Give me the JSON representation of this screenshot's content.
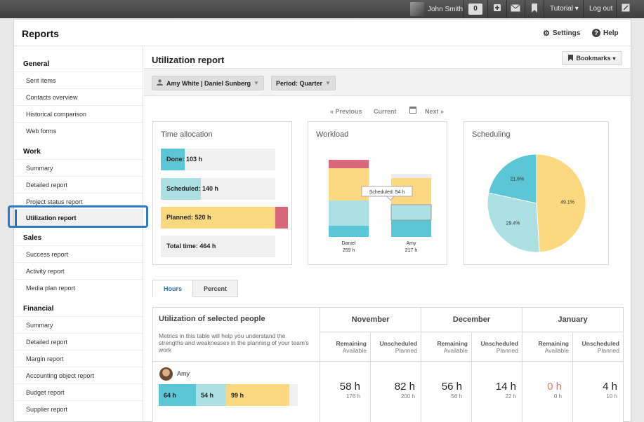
{
  "topbar": {
    "user_name": "John Smith",
    "notifications": "0",
    "tutorial": "Tutorial",
    "logout": "Log out"
  },
  "header": {
    "title": "Reports",
    "settings": "Settings",
    "help": "Help"
  },
  "sidebar": {
    "sections": [
      {
        "title": "General",
        "items": [
          "Sent items",
          "Contacts overview",
          "Historical comparison",
          "Web forms"
        ]
      },
      {
        "title": "Work",
        "items": [
          "Summary",
          "Detailed report",
          "Project status report",
          "Utilization report"
        ]
      },
      {
        "title": "Sales",
        "items": [
          "Success report",
          "Activity report",
          "Media plan report"
        ]
      },
      {
        "title": "Financial",
        "items": [
          "Summary",
          "Detailed report",
          "Margin report",
          "Accounting object report",
          "Budget report",
          "Supplier report"
        ]
      }
    ],
    "active": "Utilization report"
  },
  "main": {
    "title": "Utilization report",
    "bookmarks": "Bookmarks",
    "filters": {
      "people": "Amy White | Daniel Sunberg",
      "period": "Period: Quarter"
    },
    "pager": {
      "previous": "« Previous",
      "current": "Current",
      "next": "Next »"
    }
  },
  "time_allocation": {
    "title": "Time allocation",
    "done": "Done: 103 h",
    "scheduled": "Scheduled: 140 h",
    "planned": "Planned: 520 h",
    "total": "Total time: 464 h",
    "fractions": {
      "done": 0.21,
      "scheduled": 0.35,
      "planned": 1.0,
      "total": 1.0
    },
    "colors": {
      "done": "#5bc6d6",
      "scheduled": "#ade0e2",
      "planned": "#fcd880",
      "over": "#d9687a",
      "bg": "#f0f0f0"
    }
  },
  "workload": {
    "title": "Workload",
    "tooltip": "Scheduled: 54 h",
    "people": [
      {
        "name": "Daniel",
        "total": "259 h",
        "segments": {
          "over": 12,
          "planned": 46,
          "scheduled": 36,
          "done": 16
        }
      },
      {
        "name": "Amy",
        "total": "217 h",
        "segments": {
          "empty": 6,
          "planned": 38,
          "scheduled": 22,
          "done": 24
        }
      }
    ]
  },
  "scheduling": {
    "title": "Scheduling",
    "slices": [
      {
        "label": "49.1%",
        "value": 49.1,
        "color": "#fcd880"
      },
      {
        "label": "29.4%",
        "value": 29.4,
        "color": "#ade0e2"
      },
      {
        "label": "21.6%",
        "value": 21.6,
        "color": "#5bc6d6"
      }
    ]
  },
  "tabs": {
    "hours": "Hours",
    "percent": "Percent"
  },
  "table": {
    "title": "Utilization of selected people",
    "description": "Metrics in this table will help you understand the strengths and weaknesses in the planning of your team's work",
    "months": [
      "November",
      "December",
      "January"
    ],
    "col_remaining": "Remaining",
    "col_available": "Available",
    "col_unscheduled": "Unscheduled",
    "col_planned": "Planned",
    "person": "Amy",
    "bars": {
      "done": "64 h",
      "scheduled": "54 h",
      "planned": "99 h"
    },
    "values": [
      {
        "big": "58 h",
        "small": "176 h"
      },
      {
        "big": "82 h",
        "small": "200 h"
      },
      {
        "big": "56 h",
        "small": "56 h"
      },
      {
        "big": "14 h",
        "small": "22 h"
      },
      {
        "big": "0 h",
        "small": "0 h"
      },
      {
        "big": "4 h",
        "small": "10 h"
      }
    ]
  }
}
